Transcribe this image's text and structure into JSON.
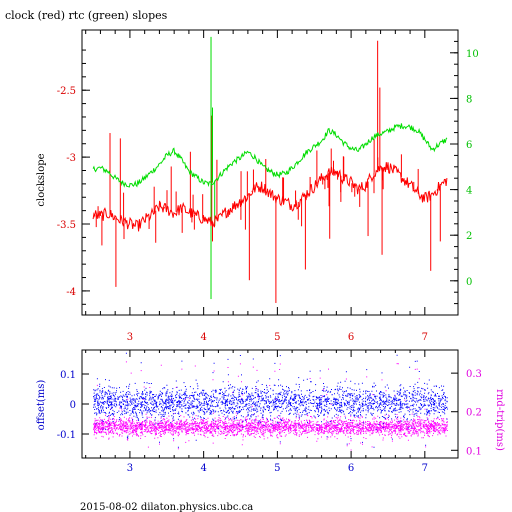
{
  "title": "clock (red) rtc (green) slopes",
  "footer": "2015-08-02  dilaton.physics.ubc.ca",
  "colors": {
    "clock": "#ff0000",
    "rtc": "#00dd00",
    "offset": "#0000ff",
    "roundtrip": "#ff00ff",
    "frame": "#000000"
  },
  "chart_data": [
    {
      "type": "line",
      "title": "clock (red) rtc (green) slopes",
      "x_ticks": [
        "3",
        "4",
        "5",
        "6",
        "7"
      ],
      "xlim": [
        2.35,
        7.45
      ],
      "ylabel": "clockslope",
      "ylim": [
        -4.18,
        -2.05
      ],
      "y_ticks": [
        "-4",
        "-3.5",
        "-3",
        "-2.5"
      ],
      "y2_ticks": [
        "0",
        "2",
        "4",
        "6",
        "8",
        "10"
      ],
      "y2lim": [
        -1.5,
        11.0
      ],
      "grid": false,
      "series": [
        {
          "axis": "left",
          "x": [
            2.5,
            2.6,
            2.7,
            2.8,
            2.9,
            3.0,
            3.1,
            3.2,
            3.3,
            3.4,
            3.5,
            3.6,
            3.7,
            3.8,
            3.9,
            4.0,
            4.1,
            4.2,
            4.3,
            4.4,
            4.5,
            4.6,
            4.7,
            4.8,
            4.9,
            5.0,
            5.1,
            5.2,
            5.3,
            5.4,
            5.5,
            5.6,
            5.7,
            5.8,
            5.9,
            6.0,
            6.1,
            6.2,
            6.3,
            6.4,
            6.5,
            6.6,
            6.7,
            6.8,
            6.9,
            7.0,
            7.1,
            7.2,
            7.3
          ],
          "values": [
            -3.43,
            -3.44,
            -3.42,
            -3.45,
            -3.48,
            -3.5,
            -3.52,
            -3.47,
            -3.43,
            -3.37,
            -3.39,
            -3.42,
            -3.38,
            -3.41,
            -3.44,
            -3.46,
            -3.49,
            -3.47,
            -3.41,
            -3.37,
            -3.33,
            -3.29,
            -3.23,
            -3.22,
            -3.27,
            -3.31,
            -3.33,
            -3.36,
            -3.33,
            -3.27,
            -3.22,
            -3.16,
            -3.12,
            -3.11,
            -3.16,
            -3.19,
            -3.24,
            -3.21,
            -3.12,
            -3.08,
            -3.07,
            -3.11,
            -3.16,
            -3.21,
            -3.27,
            -3.31,
            -3.28,
            -3.22,
            -3.17
          ]
        },
        {
          "axis": "right",
          "x": [
            2.5,
            2.6,
            2.7,
            2.8,
            2.9,
            3.0,
            3.1,
            3.2,
            3.3,
            3.4,
            3.5,
            3.6,
            3.7,
            3.8,
            3.9,
            4.0,
            4.1,
            4.2,
            4.3,
            4.4,
            4.5,
            4.6,
            4.7,
            4.8,
            4.9,
            5.0,
            5.1,
            5.2,
            5.3,
            5.4,
            5.5,
            5.6,
            5.7,
            5.8,
            5.9,
            6.0,
            6.1,
            6.2,
            6.3,
            6.4,
            6.5,
            6.6,
            6.7,
            6.8,
            6.9,
            7.0,
            7.1,
            7.2,
            7.3
          ],
          "values": [
            4.9,
            4.95,
            4.8,
            4.5,
            4.3,
            4.2,
            4.25,
            4.5,
            4.8,
            5.1,
            5.5,
            5.7,
            5.3,
            4.8,
            4.55,
            4.3,
            4.25,
            4.55,
            4.9,
            5.2,
            5.4,
            5.65,
            5.4,
            5.0,
            4.8,
            4.65,
            4.7,
            4.95,
            5.3,
            5.65,
            5.9,
            6.15,
            6.6,
            6.4,
            6.05,
            5.8,
            5.7,
            6.0,
            6.3,
            6.45,
            6.55,
            6.75,
            6.8,
            6.75,
            6.6,
            6.2,
            5.75,
            6.0,
            6.2
          ]
        }
      ],
      "spikes": [
        {
          "series": "clock",
          "x": 2.62,
          "y": -3.66
        },
        {
          "series": "clock",
          "x": 2.73,
          "y": -2.82
        },
        {
          "series": "clock",
          "x": 2.81,
          "y": -3.97
        },
        {
          "series": "clock",
          "x": 2.87,
          "y": -2.86
        },
        {
          "series": "clock",
          "x": 3.35,
          "y": -3.64
        },
        {
          "series": "clock",
          "x": 3.56,
          "y": -3.07
        },
        {
          "series": "clock",
          "x": 3.82,
          "y": -2.96
        },
        {
          "series": "clock",
          "x": 4.11,
          "y": -2.69
        },
        {
          "series": "clock",
          "x": 4.12,
          "y": -3.63
        },
        {
          "series": "clock",
          "x": 4.18,
          "y": -3.02
        },
        {
          "series": "clock",
          "x": 4.62,
          "y": -3.92
        },
        {
          "series": "clock",
          "x": 4.98,
          "y": -4.09
        },
        {
          "series": "clock",
          "x": 5.38,
          "y": -3.84
        },
        {
          "series": "clock",
          "x": 5.71,
          "y": -3.61
        },
        {
          "series": "clock",
          "x": 6.23,
          "y": -3.59
        },
        {
          "series": "clock",
          "x": 6.36,
          "y": -2.13
        },
        {
          "series": "clock",
          "x": 6.39,
          "y": -2.48
        },
        {
          "series": "clock",
          "x": 6.42,
          "y": -3.73
        },
        {
          "series": "clock",
          "x": 7.08,
          "y": -3.85
        },
        {
          "series": "clock",
          "x": 7.21,
          "y": -3.63
        },
        {
          "series": "rtc",
          "x": 4.1,
          "y": 10.7
        },
        {
          "series": "rtc",
          "x": 4.1,
          "y": -0.8
        },
        {
          "series": "rtc",
          "x": 4.12,
          "y": 7.6
        },
        {
          "series": "rtc",
          "x": 4.15,
          "y": 2.4
        }
      ]
    },
    {
      "type": "scatter",
      "x_ticks": [
        "3",
        "4",
        "5",
        "6",
        "7"
      ],
      "xlim": [
        2.35,
        7.45
      ],
      "ylabel": "offset(ms)",
      "ylim": [
        -0.18,
        0.18
      ],
      "y_ticks": [
        "-0.1",
        "0",
        "0.1"
      ],
      "y2label": "rnd-trip(ms)",
      "y2lim": [
        0.08,
        0.36
      ],
      "y2_ticks": [
        "0.1",
        "0.2",
        "0.3"
      ],
      "series": [
        {
          "axis": "left",
          "mean": 0.005,
          "spread": 0.05,
          "outlier_range": [
            -0.15,
            0.17
          ]
        },
        {
          "axis": "right",
          "mean": 0.16,
          "spread": 0.02,
          "outlier_range": [
            0.1,
            0.33
          ]
        }
      ]
    }
  ]
}
